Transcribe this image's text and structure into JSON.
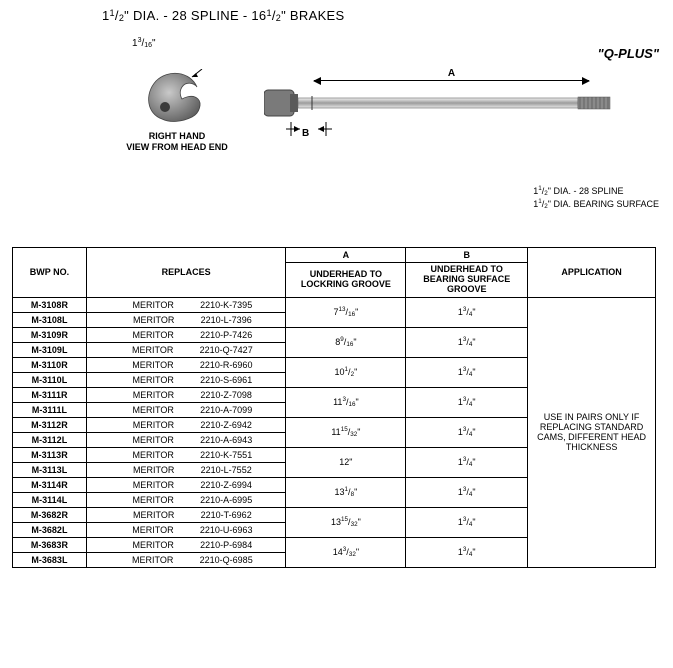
{
  "title_html": "1<sup>1</sup>/<sub>2</sub>\" DIA. - 28 SPLINE - 16<sup>1</sup>/<sub>2</sub>\" BRAKES",
  "qplus": "\"Q-PLUS\"",
  "head": {
    "dim_html": "1<sup>3</sup>/<sub>16</sub>\"",
    "caption_line1": "RIGHT HAND",
    "caption_line2": "VIEW FROM HEAD END"
  },
  "shaft": {
    "dim_a": "A",
    "dim_b": "B"
  },
  "dia_notes": {
    "line1_html": "1<sup>1</sup>/<sub>2</sub>\" DIA. - 28 SPLINE",
    "line2_html": "1<sup>1</sup>/<sub>2</sub>\" DIA. BEARING SURFACE"
  },
  "table": {
    "headers": {
      "bwp": "BWP NO.",
      "replaces": "REPLACES",
      "a_top": "A",
      "a_sub": "UNDERHEAD TO LOCKRING GROOVE",
      "b_top": "B",
      "b_sub": "UNDERHEAD TO BEARING SURFACE GROOVE",
      "app": "APPLICATION"
    },
    "application_note": "USE IN PAIRS ONLY IF REPLACING STANDARD CAMS, DIFFERENT HEAD THICKNESS",
    "groups": [
      {
        "a_html": "7<sup>13</sup>/<sub>16</sub>\"",
        "b_html": "1<sup>3</sup>/<sub>4</sub>\"",
        "rows": [
          {
            "bwp": "M-3108R",
            "brand": "MERITOR",
            "pn": "2210-K-7395"
          },
          {
            "bwp": "M-3108L",
            "brand": "MERITOR",
            "pn": "2210-L-7396"
          }
        ]
      },
      {
        "a_html": "8<sup>9</sup>/<sub>16</sub>\"",
        "b_html": "1<sup>3</sup>/<sub>4</sub>\"",
        "rows": [
          {
            "bwp": "M-3109R",
            "brand": "MERITOR",
            "pn": "2210-P-7426"
          },
          {
            "bwp": "M-3109L",
            "brand": "MERITOR",
            "pn": "2210-Q-7427"
          }
        ]
      },
      {
        "a_html": "10<sup>1</sup>/<sub>2</sub>\"",
        "b_html": "1<sup>3</sup>/<sub>4</sub>\"",
        "rows": [
          {
            "bwp": "M-3110R",
            "brand": "MERITOR",
            "pn": "2210-R-6960"
          },
          {
            "bwp": "M-3110L",
            "brand": "MERITOR",
            "pn": "2210-S-6961"
          }
        ]
      },
      {
        "a_html": "11<sup>3</sup>/<sub>16</sub>\"",
        "b_html": "1<sup>3</sup>/<sub>4</sub>\"",
        "rows": [
          {
            "bwp": "M-3111R",
            "brand": "MERITOR",
            "pn": "2210-Z-7098"
          },
          {
            "bwp": "M-3111L",
            "brand": "MERITOR",
            "pn": "2210-A-7099"
          }
        ]
      },
      {
        "a_html": "11<sup>15</sup>/<sub>32</sub>\"",
        "b_html": "1<sup>3</sup>/<sub>4</sub>\"",
        "rows": [
          {
            "bwp": "M-3112R",
            "brand": "MERITOR",
            "pn": "2210-Z-6942"
          },
          {
            "bwp": "M-3112L",
            "brand": "MERITOR",
            "pn": "2210-A-6943"
          }
        ]
      },
      {
        "a_html": "12\"",
        "b_html": "1<sup>3</sup>/<sub>4</sub>\"",
        "rows": [
          {
            "bwp": "M-3113R",
            "brand": "MERITOR",
            "pn": "2210-K-7551"
          },
          {
            "bwp": "M-3113L",
            "brand": "MERITOR",
            "pn": "2210-L-7552"
          }
        ]
      },
      {
        "a_html": "13<sup>1</sup>/<sub>8</sub>\"",
        "b_html": "1<sup>3</sup>/<sub>4</sub>\"",
        "rows": [
          {
            "bwp": "M-3114R",
            "brand": "MERITOR",
            "pn": "2210-Z-6994"
          },
          {
            "bwp": "M-3114L",
            "brand": "MERITOR",
            "pn": "2210-A-6995"
          }
        ]
      },
      {
        "a_html": "13<sup>15</sup>/<sub>32</sub>\"",
        "b_html": "1<sup>3</sup>/<sub>4</sub>\"",
        "rows": [
          {
            "bwp": "M-3682R",
            "brand": "MERITOR",
            "pn": "2210-T-6962"
          },
          {
            "bwp": "M-3682L",
            "brand": "MERITOR",
            "pn": "2210-U-6963"
          }
        ]
      },
      {
        "a_html": "14<sup>3</sup>/<sub>32</sub>\"",
        "b_html": "1<sup>3</sup>/<sub>4</sub>\"",
        "rows": [
          {
            "bwp": "M-3683R",
            "brand": "MERITOR",
            "pn": "2210-P-6984"
          },
          {
            "bwp": "M-3683L",
            "brand": "MERITOR",
            "pn": "2210-Q-6985"
          }
        ]
      }
    ]
  },
  "colors": {
    "text": "#000000",
    "bg": "#ffffff",
    "metal_light": "#d8d8d8",
    "metal_mid": "#a8a8a8",
    "metal_dark": "#6f6f6f"
  }
}
